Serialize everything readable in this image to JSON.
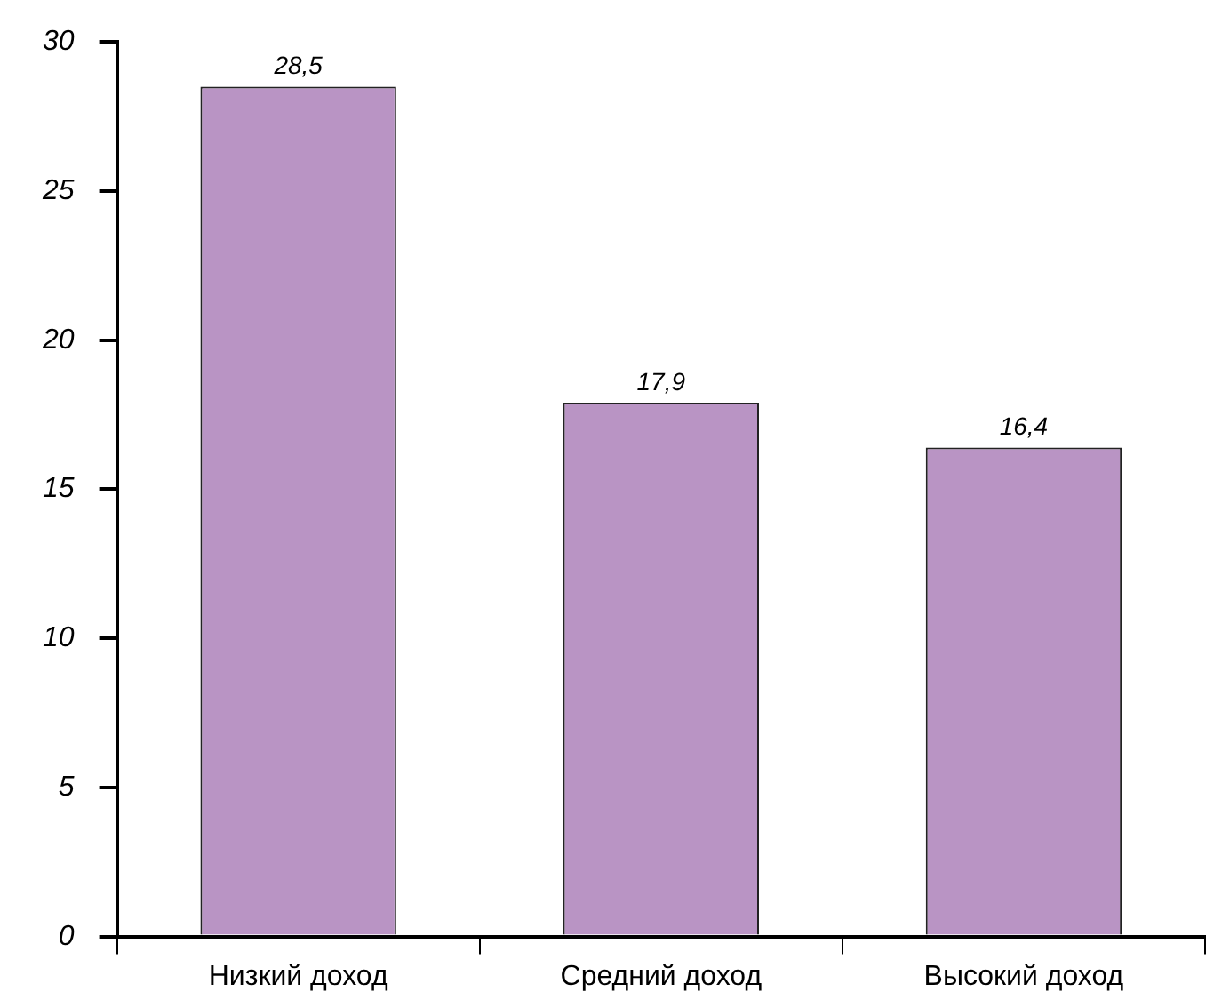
{
  "chart_data": {
    "type": "bar",
    "categories": [
      "Низкий доход",
      "Средний доход",
      "Высокий доход"
    ],
    "values": [
      28.5,
      17.9,
      16.4
    ],
    "color": "#b994c4",
    "value_labels": [
      "28,5",
      "17,9",
      "16,4"
    ],
    "ylim": [
      0,
      30
    ],
    "yticks": [
      0,
      5,
      10,
      15,
      20,
      25,
      30
    ],
    "grid": false,
    "legend": false
  }
}
